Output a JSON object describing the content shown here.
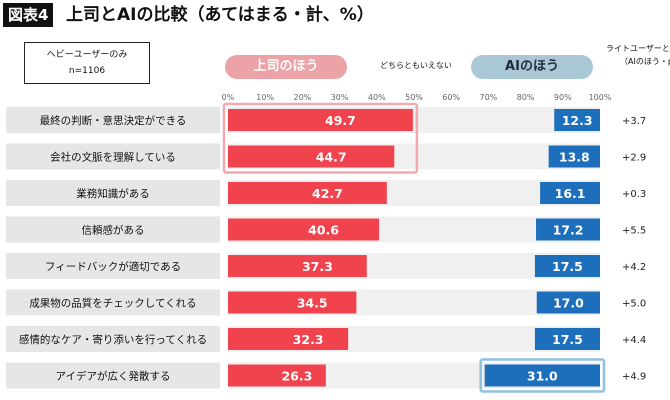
{
  "header": {
    "badge": "図表4",
    "title": "上司とAIの比較（あてはまる・計、%）"
  },
  "sample": {
    "line1": "ヘビーユーザーのみ",
    "line2": "n=1106"
  },
  "legend": {
    "boss": "上司のほう",
    "neutral": "どちらともいえない",
    "ai": "AIのほう",
    "diff_line1": "ライトユーザーとの差",
    "diff_line2": "（AIのほう・pt）"
  },
  "colors": {
    "boss_bar": "#f0434e",
    "ai_bar": "#1e6fbb",
    "neutral_bar": "#f0f0f0",
    "row_label_bg": "#e6e6e6",
    "highlight_boss": "#f4a9ae",
    "highlight_ai": "#8fc0e0"
  },
  "chart_data": {
    "type": "bar",
    "orientation": "horizontal-stacked",
    "x_ticks": [
      "0%",
      "10%",
      "20%",
      "30%",
      "40%",
      "50%",
      "60%",
      "70%",
      "80%",
      "90%",
      "100%"
    ],
    "xlim": [
      0,
      100
    ],
    "categories": [
      "最終の判断・意思決定ができる",
      "会社の文脈を理解している",
      "業務知識がある",
      "信頼感がある",
      "フィードバックが適切である",
      "成果物の品質をチェックしてくれる",
      "感情的なケア・寄り添いを行ってくれる",
      "アイデアが広く発散する"
    ],
    "series": [
      {
        "name": "上司のほう",
        "values": [
          49.7,
          44.7,
          42.7,
          40.6,
          37.3,
          34.5,
          32.3,
          26.3
        ]
      },
      {
        "name": "AIのほう",
        "values": [
          12.3,
          13.8,
          16.1,
          17.2,
          17.5,
          17.0,
          17.5,
          31.0
        ]
      }
    ],
    "diff_values": [
      "+3.7",
      "+2.9",
      "+0.3",
      "+5.5",
      "+4.2",
      "+5.0",
      "+4.4",
      "+4.9"
    ],
    "highlight_boss_rows": [
      0,
      1
    ],
    "highlight_ai_rows": [
      7
    ]
  }
}
